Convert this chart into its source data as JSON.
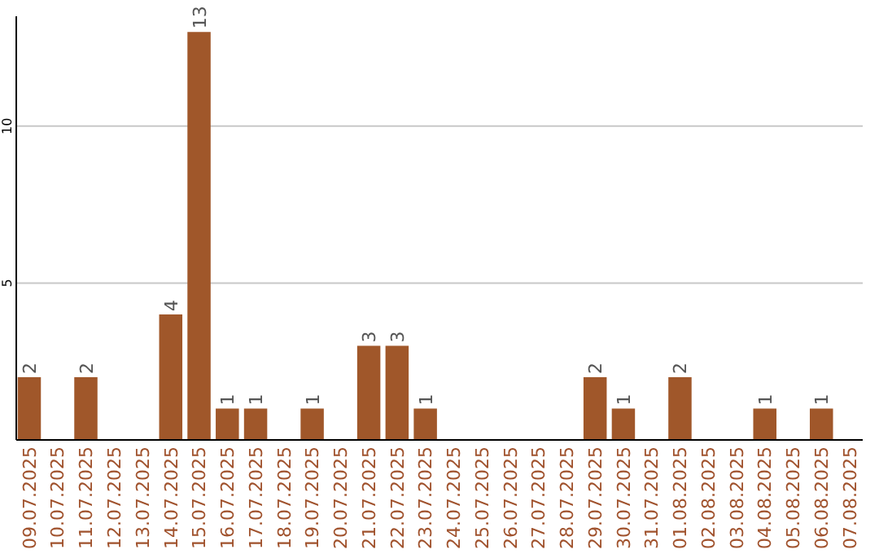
{
  "chart_data": {
    "type": "bar",
    "categories": [
      "09.07.2025",
      "10.07.2025",
      "11.07.2025",
      "12.07.2025",
      "13.07.2025",
      "14.07.2025",
      "15.07.2025",
      "16.07.2025",
      "17.07.2025",
      "18.07.2025",
      "19.07.2025",
      "20.07.2025",
      "21.07.2025",
      "22.07.2025",
      "23.07.2025",
      "24.07.2025",
      "25.07.2025",
      "26.07.2025",
      "27.07.2025",
      "28.07.2025",
      "29.07.2025",
      "30.07.2025",
      "31.07.2025",
      "01.08.2025",
      "02.08.2025",
      "03.08.2025",
      "04.08.2025",
      "05.08.2025",
      "06.08.2025",
      "07.08.2025"
    ],
    "values": [
      2,
      0,
      2,
      0,
      0,
      4,
      13,
      1,
      1,
      0,
      1,
      0,
      3,
      3,
      1,
      0,
      0,
      0,
      0,
      0,
      2,
      1,
      0,
      2,
      0,
      0,
      1,
      0,
      1,
      0
    ],
    "value_labels": [
      "2",
      null,
      "2",
      null,
      null,
      "4",
      "13",
      "1",
      "1",
      null,
      "1",
      null,
      "3",
      "3",
      "1",
      null,
      null,
      null,
      null,
      null,
      "2",
      "1",
      null,
      "2",
      null,
      null,
      "1",
      null,
      "1",
      null
    ],
    "color": "#a0572a",
    "ylim": [
      0,
      13.5
    ],
    "yticks": [
      5,
      10
    ],
    "grid": "y"
  }
}
